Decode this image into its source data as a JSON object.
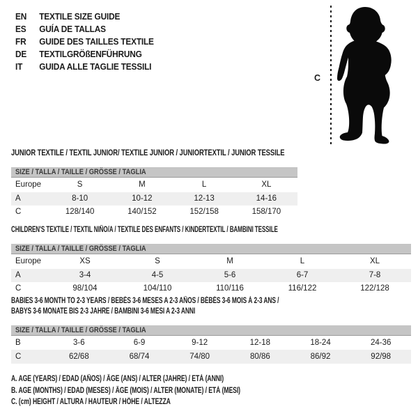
{
  "colors": {
    "text": "#1c1c1c",
    "band_bg": "#c5c5c5",
    "band_border": "#9a9a9a",
    "alt_row_bg": "#efefef",
    "silhouette": "#0a0a0a"
  },
  "languages": [
    {
      "code": "EN",
      "label": "TEXTILE SIZE GUIDE"
    },
    {
      "code": "ES",
      "label": "GUÍA DE TALLAS"
    },
    {
      "code": "FR",
      "label": "GUIDE DES TAILLES TEXTILE"
    },
    {
      "code": "DE",
      "label": "TEXTILGRÖßENFÜHRUNG"
    },
    {
      "code": "IT",
      "label": "GUIDA ALLE TAGLIE TESSILI"
    }
  ],
  "figure": {
    "height_marker_label": "C"
  },
  "tables": [
    {
      "title": "JUNIOR TEXTILE / TEXTIL JUNIOR/ TEXTILE JUNIOR / JUNIORTEXTIL / JUNIOR TESSILE",
      "title_line2": "",
      "band": "SIZE / TALLA / TAILLE / GRÖSSE / TAGLIA",
      "rows": [
        {
          "label": "Europe",
          "values": [
            "S",
            "M",
            "L",
            "XL"
          ],
          "shaded": false,
          "head": true
        },
        {
          "label": "A",
          "values": [
            "8-10",
            "10-12",
            "12-13",
            "14-16"
          ],
          "shaded": true,
          "head": false
        },
        {
          "label": "C",
          "values": [
            "128/140",
            "140/152",
            "152/158",
            "158/170"
          ],
          "shaded": false,
          "head": false
        }
      ]
    },
    {
      "title": "CHILDREN'S TEXTILE / TEXTIL NIÑO/A / TEXTILE DES ENFANTS / KINDERTEXTIL / BAMBINI TESSILE",
      "title_line2": "",
      "band": "SIZE / TALLA / TAILLE / GRÖSSE / TAGLIA",
      "rows": [
        {
          "label": "Europe",
          "values": [
            "XS",
            "S",
            "M",
            "L",
            "XL"
          ],
          "shaded": false,
          "head": true
        },
        {
          "label": "A",
          "values": [
            "3-4",
            "4-5",
            "5-6",
            "6-7",
            "7-8"
          ],
          "shaded": true,
          "head": false
        },
        {
          "label": "C",
          "values": [
            "98/104",
            "104/110",
            "110/116",
            "116/122",
            "122/128"
          ],
          "shaded": false,
          "head": false
        }
      ]
    },
    {
      "title": "BABIES 3-6 MONTH TO 2-3 YEARS / BEBÉS 3-6 MESES A 2-3 AÑOS / BÉBÉS 3-6 MOIS À 2-3 ANS /",
      "title_line2": "BABYS 3-6 MONATE BIS 2-3 JAHRE / BAMBINI 3-6 MESI A 2-3 ANNI",
      "band": "SIZE / TALLA / TAILLE / GRÖSSE / TAGLIA",
      "rows": [
        {
          "label": "B",
          "values": [
            "3-6",
            "6-9",
            "9-12",
            "12-18",
            "18-24",
            "24-36"
          ],
          "shaded": false,
          "head": false
        },
        {
          "label": "C",
          "values": [
            "62/68",
            "68/74",
            "74/80",
            "80/86",
            "86/92",
            "92/98"
          ],
          "shaded": true,
          "head": false
        }
      ]
    }
  ],
  "footnotes": [
    "A. AGE (YEARS) / EDAD (AÑOS) / ÂGE (ANS) / ALTER (JAHRE) / ETÀ (ANNI)",
    "B. AGE (MONTHS) / EDAD (MESES) / ÂGE (MOIS) / ALTER (MONATE) / ETÀ (MESI)",
    "C. (cm) HEIGHT / ALTURA / HAUTEUR / HÖHE / ALTEZZA"
  ]
}
